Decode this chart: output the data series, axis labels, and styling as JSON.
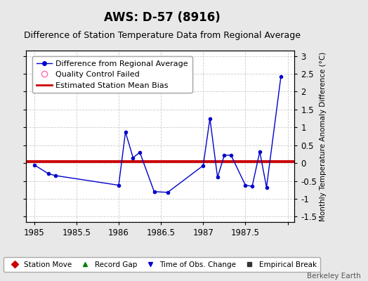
{
  "title": "AWS: D-57 (8916)",
  "subtitle": "Difference of Station Temperature Data from Regional Average",
  "ylabel_right": "Monthly Temperature Anomaly Difference (°C)",
  "background_color": "#e8e8e8",
  "plot_bg_color": "#ffffff",
  "xlim": [
    1984.9,
    1988.08
  ],
  "ylim": [
    -1.65,
    3.15
  ],
  "yticks": [
    -1.5,
    -1.0,
    -0.5,
    0.0,
    0.5,
    1.0,
    1.5,
    2.0,
    2.5,
    3.0
  ],
  "ytick_labels": [
    "-1.5",
    "-1",
    "-0.5",
    "0",
    "0.5",
    "1",
    "1.5",
    "2",
    "2.5",
    "3"
  ],
  "xticks": [
    1985,
    1985.5,
    1986,
    1986.5,
    1987,
    1987.5,
    1988
  ],
  "xtick_labels": [
    "1985",
    "1985.5",
    "1986",
    "1986.5",
    "1987",
    "1987.5",
    ""
  ],
  "line_x": [
    1985.0,
    1985.17,
    1985.25,
    1986.0,
    1986.08,
    1986.17,
    1986.25,
    1986.42,
    1986.58,
    1987.0,
    1987.08,
    1987.17,
    1987.25,
    1987.33,
    1987.5,
    1987.58,
    1987.67,
    1987.75,
    1987.92
  ],
  "line_y": [
    -0.05,
    -0.3,
    -0.35,
    -0.62,
    0.87,
    0.15,
    0.3,
    -0.8,
    -0.82,
    -0.07,
    1.25,
    -0.4,
    0.22,
    0.22,
    -0.62,
    -0.65,
    0.32,
    -0.68,
    2.42
  ],
  "bias_value": 0.04,
  "line_color": "#0000cc",
  "bias_color": "#cc0000",
  "grid_color": "#cccccc",
  "title_fontsize": 12,
  "subtitle_fontsize": 9,
  "tick_fontsize": 8.5,
  "legend_fontsize": 8,
  "watermark": "Berkeley Earth"
}
